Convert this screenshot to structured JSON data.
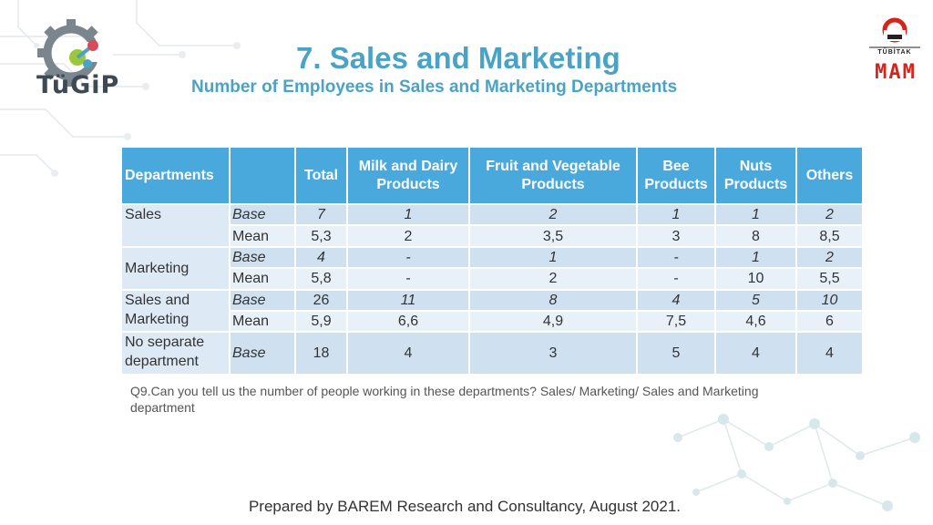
{
  "title": "7. Sales and Marketing",
  "subtitle": "Number of Employees in Sales and Marketing Departments",
  "logos": {
    "left_text": "TüGiP",
    "right_top_text": "TÜBİTAK",
    "right_main_text": "MAM"
  },
  "colors": {
    "title": "#4aa3c4",
    "header_bg": "#4aa9dc",
    "row_dark": "#cfe1f1",
    "row_light": "#e8f0f8",
    "logo_red": "#d3261b"
  },
  "table": {
    "headers": [
      "Departments",
      "",
      "Total",
      "Milk and Dairy Products",
      "Fruit and Vegetable Products",
      "Bee Products",
      "Nuts Products",
      "Others"
    ],
    "groups": [
      {
        "department": "Sales",
        "rows": [
          {
            "kind": "Base",
            "values": [
              "7",
              "1",
              "2",
              "1",
              "1",
              "2"
            ]
          },
          {
            "kind": "Mean",
            "values": [
              "5,3",
              "2",
              "3,5",
              "3",
              "8",
              "8,5"
            ]
          }
        ]
      },
      {
        "department": "Marketing",
        "rows": [
          {
            "kind": "Base",
            "values": [
              "4",
              "-",
              "1",
              "-",
              "1",
              "2"
            ]
          },
          {
            "kind": "Mean",
            "values": [
              "5,8",
              "-",
              "2",
              "-",
              "10",
              "5,5"
            ]
          }
        ]
      },
      {
        "department": "Sales and Marketing",
        "rows": [
          {
            "kind": "Base",
            "values": [
              "26",
              "11",
              "8",
              "4",
              "5",
              "10"
            ]
          },
          {
            "kind": "Mean",
            "values": [
              "5,9",
              "6,6",
              "4,9",
              "7,5",
              "4,6",
              "6"
            ]
          }
        ]
      },
      {
        "department": "No separate department",
        "rows": [
          {
            "kind": "Base",
            "values": [
              "18",
              "4",
              "3",
              "5",
              "4",
              "4"
            ]
          }
        ]
      }
    ]
  },
  "note": "Q9.Can you tell us the number of people working in these departments?  Sales/ Marketing/ Sales and Marketing department",
  "footer": "Prepared by BAREM Research and Consultancy, August 2021."
}
